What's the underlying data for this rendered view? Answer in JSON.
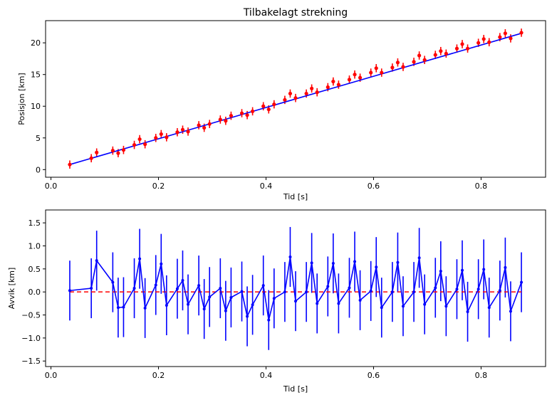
{
  "colors": {
    "line": "#0000ff",
    "points_top": "#ff0000",
    "errorbar_top": "#ff0000",
    "points_bottom": "#0000ff",
    "errorbar_bottom": "#0000ff",
    "zero_line": "#ff0000"
  },
  "chart_data": [
    {
      "type": "scatter",
      "title": "Tilbakelagt strekning",
      "xlabel": "Tid [s]",
      "ylabel": "Posisjon [km]",
      "xlim": [
        -0.01,
        0.92
      ],
      "ylim": [
        -1.2,
        23.5
      ],
      "xticks": [
        0.0,
        0.2,
        0.4,
        0.6,
        0.8
      ],
      "xtick_labels": [
        "0.0",
        "0.2",
        "0.4",
        "0.6",
        "0.8"
      ],
      "yticks": [
        0,
        5,
        10,
        15,
        20
      ],
      "ytick_labels": [
        "0",
        "5",
        "10",
        "15",
        "20"
      ],
      "grid": false,
      "series": [
        {
          "kind": "errorbar-points",
          "x": [
            0.035,
            0.075,
            0.085,
            0.115,
            0.125,
            0.135,
            0.155,
            0.165,
            0.175,
            0.195,
            0.205,
            0.215,
            0.235,
            0.245,
            0.255,
            0.275,
            0.285,
            0.295,
            0.315,
            0.325,
            0.335,
            0.355,
            0.365,
            0.375,
            0.395,
            0.405,
            0.415,
            0.435,
            0.445,
            0.455,
            0.475,
            0.485,
            0.495,
            0.515,
            0.525,
            0.535,
            0.555,
            0.565,
            0.575,
            0.595,
            0.605,
            0.615,
            0.635,
            0.645,
            0.655,
            0.675,
            0.685,
            0.695,
            0.715,
            0.725,
            0.735,
            0.755,
            0.765,
            0.775,
            0.795,
            0.805,
            0.815,
            0.835,
            0.845,
            0.855,
            0.875
          ],
          "y": [
            0.8,
            1.8,
            2.7,
            3.0,
            2.6,
            3.1,
            3.9,
            4.8,
            4.0,
            5.0,
            5.6,
            5.1,
            5.9,
            6.3,
            6.0,
            7.0,
            6.6,
            7.2,
            7.9,
            7.7,
            8.5,
            8.9,
            8.6,
            9.2,
            10.0,
            9.5,
            10.3,
            11.0,
            12.0,
            11.3,
            12.0,
            12.8,
            12.2,
            13.0,
            13.9,
            13.4,
            14.2,
            15.0,
            14.5,
            15.3,
            16.0,
            15.3,
            16.1,
            16.9,
            16.2,
            17.0,
            18.0,
            17.3,
            18.1,
            18.7,
            18.3,
            19.1,
            19.8,
            19.1,
            20.0,
            20.6,
            20.1,
            20.9,
            21.5,
            20.7,
            21.6
          ],
          "yerr": 0.65
        },
        {
          "kind": "line",
          "x": [
            0.035,
            0.875
          ],
          "y": [
            0.8,
            21.5
          ]
        }
      ]
    },
    {
      "type": "line",
      "title": "",
      "xlabel": "Tid [s]",
      "ylabel": "Avvik [km]",
      "xlim": [
        -0.01,
        0.92
      ],
      "ylim": [
        -1.62,
        1.78
      ],
      "xticks": [
        0.0,
        0.2,
        0.4,
        0.6,
        0.8
      ],
      "xtick_labels": [
        "0.0",
        "0.2",
        "0.4",
        "0.6",
        "0.8"
      ],
      "yticks": [
        -1.5,
        -1.0,
        -0.5,
        0.0,
        0.5,
        1.0,
        1.5
      ],
      "ytick_labels": [
        "−1.5",
        "−1.0",
        "−0.5",
        "0.0",
        "0.5",
        "1.0",
        "1.5"
      ],
      "grid": false,
      "series": [
        {
          "kind": "errorbar-line",
          "x": [
            0.035,
            0.075,
            0.085,
            0.115,
            0.125,
            0.135,
            0.155,
            0.165,
            0.175,
            0.195,
            0.205,
            0.215,
            0.235,
            0.245,
            0.255,
            0.275,
            0.285,
            0.295,
            0.315,
            0.325,
            0.335,
            0.355,
            0.365,
            0.375,
            0.395,
            0.405,
            0.415,
            0.435,
            0.445,
            0.455,
            0.475,
            0.485,
            0.495,
            0.515,
            0.525,
            0.535,
            0.555,
            0.565,
            0.575,
            0.595,
            0.605,
            0.615,
            0.635,
            0.645,
            0.655,
            0.675,
            0.685,
            0.695,
            0.715,
            0.725,
            0.735,
            0.755,
            0.765,
            0.775,
            0.795,
            0.805,
            0.815,
            0.835,
            0.845,
            0.855,
            0.875
          ],
          "y": [
            0.03,
            0.08,
            0.68,
            0.21,
            -0.34,
            -0.33,
            0.08,
            0.72,
            -0.35,
            0.15,
            0.61,
            -0.29,
            0.07,
            0.25,
            -0.27,
            0.14,
            -0.37,
            -0.11,
            0.08,
            -0.41,
            -0.12,
            0.01,
            -0.53,
            -0.28,
            0.14,
            -0.61,
            -0.14,
            0.0,
            0.76,
            -0.2,
            0.0,
            0.63,
            -0.25,
            0.12,
            0.62,
            -0.25,
            0.09,
            0.66,
            -0.18,
            0.02,
            0.54,
            -0.34,
            0.0,
            0.64,
            -0.31,
            0.0,
            0.74,
            -0.27,
            0.09,
            0.45,
            -0.31,
            0.06,
            0.47,
            -0.43,
            0.06,
            0.49,
            -0.34,
            0.03,
            0.53,
            -0.42,
            0.21
          ],
          "yerr": 0.65
        },
        {
          "kind": "dashed-line",
          "x": [
            0.035,
            0.875
          ],
          "y": [
            0.0,
            0.0
          ]
        }
      ]
    }
  ]
}
